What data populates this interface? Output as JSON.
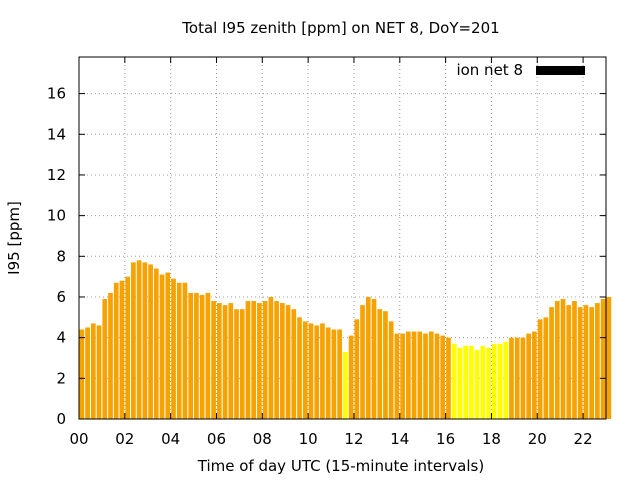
{
  "chart_data": {
    "type": "bar",
    "title": "Total I95 zenith [ppm] on NET 8, DoY=201",
    "xlabel": "Time of day UTC (15-minute intervals)",
    "ylabel": "I95 [ppm]",
    "xlim": [
      0,
      23
    ],
    "ylim": [
      0,
      17.8
    ],
    "x_ticks": [
      "00",
      "02",
      "04",
      "06",
      "08",
      "10",
      "12",
      "14",
      "16",
      "18",
      "20",
      "22"
    ],
    "y_ticks": [
      "0",
      "2",
      "4",
      "6",
      "8",
      "10",
      "12",
      "14",
      "16"
    ],
    "grid": true,
    "legend_position": "top-right",
    "series": [
      {
        "name": "ion net 8",
        "legend_color": "#000000",
        "interval_hours": 0.25,
        "start_hour": 0,
        "values": [
          4.4,
          4.5,
          4.7,
          4.6,
          5.9,
          6.2,
          6.7,
          6.8,
          7.0,
          7.7,
          7.8,
          7.7,
          7.6,
          7.4,
          7.1,
          7.2,
          6.9,
          6.7,
          6.7,
          6.2,
          6.2,
          6.1,
          6.2,
          5.8,
          5.7,
          5.6,
          5.7,
          5.4,
          5.4,
          5.8,
          5.8,
          5.7,
          5.8,
          6.0,
          5.8,
          5.7,
          5.6,
          5.4,
          5.0,
          4.8,
          4.7,
          4.6,
          4.7,
          4.5,
          4.4,
          4.4,
          3.3,
          4.1,
          4.9,
          5.6,
          6.0,
          5.9,
          5.4,
          5.3,
          4.8,
          4.2,
          4.2,
          4.3,
          4.3,
          4.3,
          4.2,
          4.3,
          4.2,
          4.1,
          4.0,
          3.7,
          3.5,
          3.6,
          3.6,
          3.4,
          3.6,
          3.5,
          3.7,
          3.7,
          3.8,
          4.0,
          4.0,
          4.0,
          4.2,
          4.3,
          4.9,
          5.0,
          5.5,
          5.8,
          5.9,
          5.6,
          5.8,
          5.5,
          5.6,
          5.5,
          5.7,
          5.9,
          6.0
        ],
        "threshold": 4.0,
        "color_above": "#f6a200",
        "color_below": "#ffff00"
      }
    ]
  }
}
